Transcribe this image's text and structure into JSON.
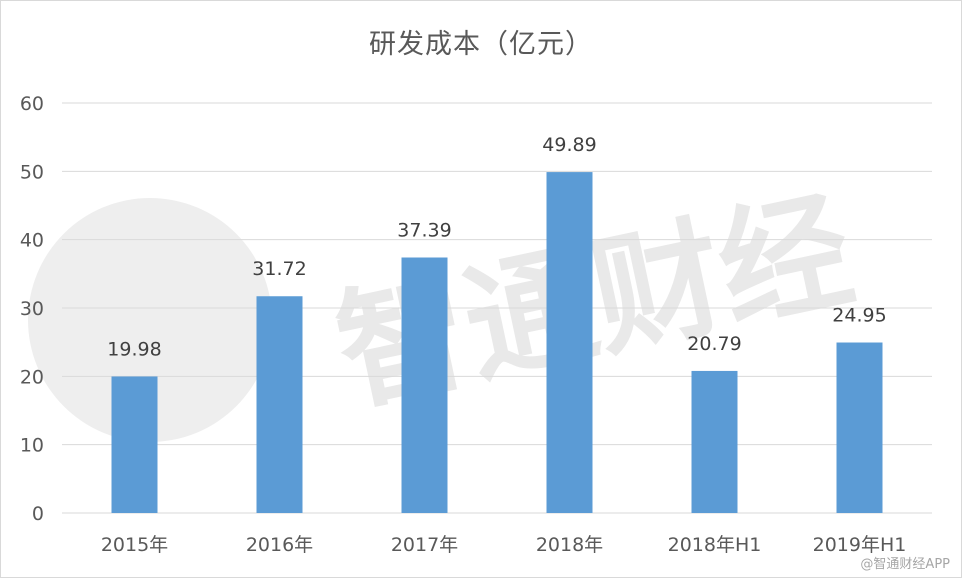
{
  "chart_data": {
    "type": "bar",
    "title": "研发成本（亿元）",
    "categories": [
      "2015年",
      "2016年",
      "2017年",
      "2018年",
      "2018年H1",
      "2019年H1"
    ],
    "values": [
      19.98,
      31.72,
      37.39,
      49.89,
      20.79,
      24.95
    ],
    "data_labels": [
      "19.98",
      "31.72",
      "37.39",
      "49.89",
      "20.79",
      "24.95"
    ],
    "ylim": [
      0,
      60
    ],
    "yticks": [
      "0",
      "10",
      "20",
      "30",
      "40",
      "50",
      "60"
    ],
    "xlabel": "",
    "ylabel": "",
    "grid": true,
    "bar_color": "#5b9bd5"
  },
  "watermark": {
    "text": "智通财经",
    "credit": "@智通财经APP"
  }
}
